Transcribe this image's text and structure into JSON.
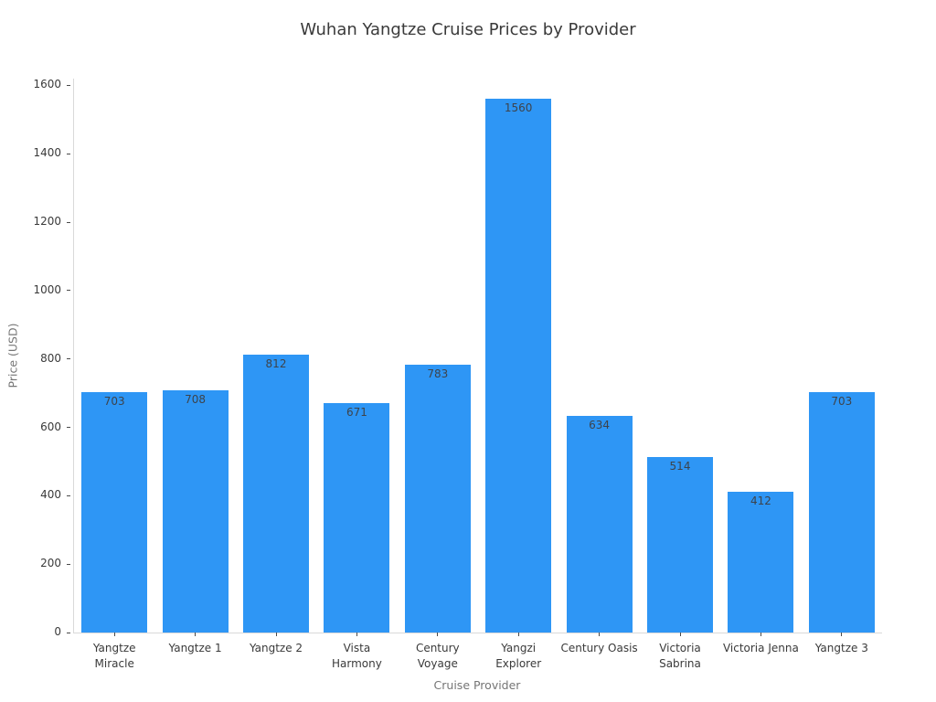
{
  "chart_data": {
    "type": "bar",
    "title": "Wuhan Yangtze Cruise Prices by Provider",
    "xlabel": "Cruise Provider",
    "ylabel": "Price (USD)",
    "categories": [
      "Yangtze Miracle",
      "Yangtze 1",
      "Yangtze 2",
      "Vista Harmony",
      "Century Voyage",
      "Yangzi Explorer",
      "Century Oasis",
      "Victoria Sabrina",
      "Victoria Jenna",
      "Yangtze 3"
    ],
    "values": [
      703,
      708,
      812,
      671,
      783,
      1560,
      634,
      514,
      412,
      703
    ],
    "yticks": [
      0,
      200,
      400,
      600,
      800,
      1000,
      1200,
      1400,
      1600
    ],
    "ylim": [
      0,
      1620
    ],
    "grid": false,
    "legend": null,
    "bar_color": "#2e96f5",
    "value_label_color": "#3d434b",
    "axis_line_color": "#d9d9d9",
    "tick_label_color": "#3a3a3a",
    "axis_title_color": "#757575",
    "title_color": "#3a3a3a"
  }
}
